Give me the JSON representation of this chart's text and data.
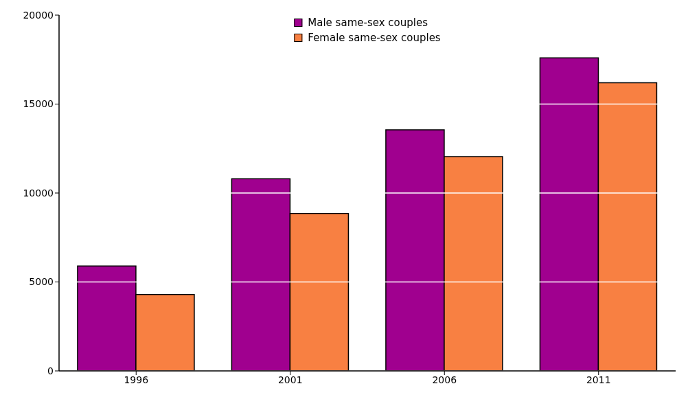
{
  "chart_data": {
    "type": "bar",
    "categories": [
      "1996",
      "2001",
      "2006",
      "2011"
    ],
    "series": [
      {
        "name": "Male same-sex couples",
        "color": "#a0008f",
        "values": [
          5900,
          10800,
          13550,
          17600
        ]
      },
      {
        "name": "Female same-sex couples",
        "color": "#f88042",
        "values": [
          4300,
          8850,
          12050,
          16200
        ]
      }
    ],
    "ylim": [
      0,
      20000
    ],
    "yticks": [
      0,
      5000,
      10000,
      15000,
      20000
    ],
    "grid": "y",
    "legend": "top"
  }
}
